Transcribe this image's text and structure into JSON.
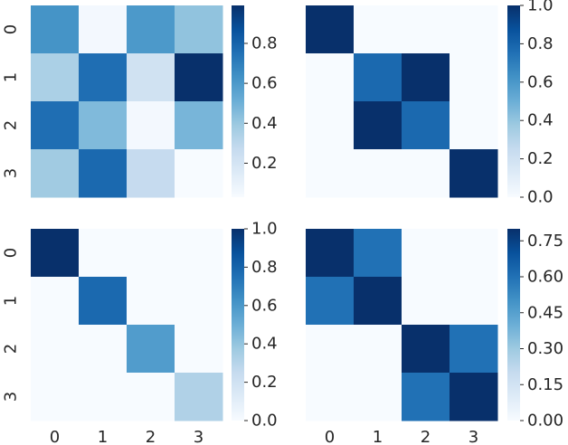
{
  "chart_data": [
    {
      "type": "heatmap",
      "title": "",
      "xlabel": "",
      "ylabel": "",
      "x_tick_labels": [],
      "y_tick_labels": [
        "0",
        "1",
        "2",
        "3"
      ],
      "colormap": "Blues",
      "vmin": 0.03,
      "vmax": 0.99,
      "colorbar_ticks": [
        "0.2",
        "0.4",
        "0.6",
        "0.8"
      ],
      "colorbar_tick_values": [
        0.2,
        0.4,
        0.6,
        0.8
      ],
      "matrix": [
        [
          0.62,
          0.05,
          0.6,
          0.42
        ],
        [
          0.35,
          0.76,
          0.22,
          0.99
        ],
        [
          0.76,
          0.46,
          0.05,
          0.48
        ],
        [
          0.38,
          0.78,
          0.27,
          0.03
        ]
      ]
    },
    {
      "type": "heatmap",
      "title": "",
      "xlabel": "",
      "ylabel": "",
      "x_tick_labels": [],
      "y_tick_labels": [],
      "colormap": "Blues",
      "vmin": 0.0,
      "vmax": 1.0,
      "colorbar_ticks": [
        "0.0",
        "0.2",
        "0.4",
        "0.6",
        "0.8",
        "1.0"
      ],
      "colorbar_tick_values": [
        0.0,
        0.2,
        0.4,
        0.6,
        0.8,
        1.0
      ],
      "matrix": [
        [
          1.0,
          0.0,
          0.0,
          0.0
        ],
        [
          0.0,
          0.78,
          1.0,
          0.0
        ],
        [
          0.0,
          1.0,
          0.78,
          0.0
        ],
        [
          0.0,
          0.0,
          0.0,
          1.0
        ]
      ]
    },
    {
      "type": "heatmap",
      "title": "",
      "xlabel": "",
      "ylabel": "",
      "x_tick_labels": [
        "0",
        "1",
        "2",
        "3"
      ],
      "y_tick_labels": [
        "0",
        "1",
        "2",
        "3"
      ],
      "colormap": "Blues",
      "vmin": 0.0,
      "vmax": 1.0,
      "colorbar_ticks": [
        "0.0",
        "0.2",
        "0.4",
        "0.6",
        "0.8",
        "1.0"
      ],
      "colorbar_tick_values": [
        0.0,
        0.2,
        0.4,
        0.6,
        0.8,
        1.0
      ],
      "matrix": [
        [
          1.0,
          0.0,
          0.0,
          0.0
        ],
        [
          0.0,
          0.78,
          0.0,
          0.0
        ],
        [
          0.0,
          0.0,
          0.58,
          0.0
        ],
        [
          0.0,
          0.0,
          0.0,
          0.32
        ]
      ]
    },
    {
      "type": "heatmap",
      "title": "",
      "xlabel": "",
      "ylabel": "",
      "x_tick_labels": [
        "0",
        "1",
        "2",
        "3"
      ],
      "y_tick_labels": [],
      "colormap": "Blues",
      "vmin": 0.0,
      "vmax": 0.8,
      "colorbar_ticks": [
        "0.00",
        "0.15",
        "0.30",
        "0.45",
        "0.60",
        "0.75"
      ],
      "colorbar_tick_values": [
        0.0,
        0.15,
        0.3,
        0.45,
        0.6,
        0.75
      ],
      "matrix": [
        [
          0.8,
          0.6,
          0.0,
          0.0
        ],
        [
          0.6,
          0.8,
          0.0,
          0.0
        ],
        [
          0.0,
          0.0,
          0.8,
          0.6
        ],
        [
          0.0,
          0.0,
          0.6,
          0.8
        ]
      ]
    }
  ]
}
